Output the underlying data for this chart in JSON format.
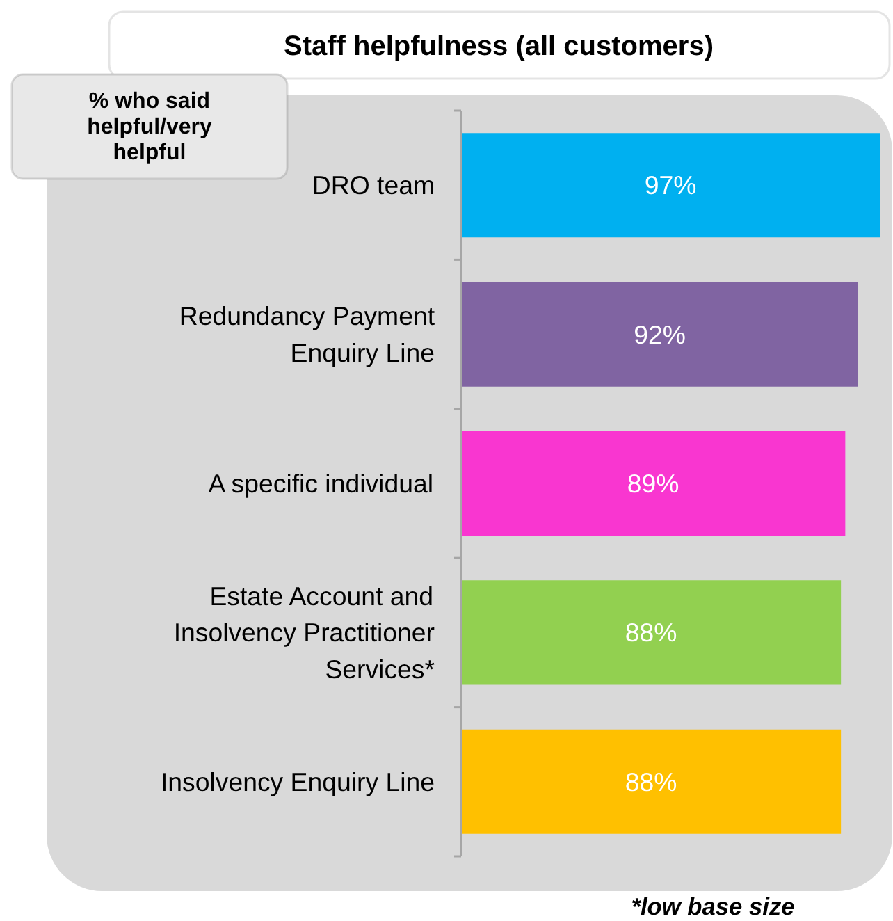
{
  "chart_data": {
    "type": "bar",
    "orientation": "horizontal",
    "title": "Staff helpfulness (all customers)",
    "categories": [
      "DRO team",
      "Redundancy Payment Enquiry Line",
      "A specific individual",
      "Estate Account and Insolvency Practitioner Services*",
      "Insolvency Enquiry Line"
    ],
    "values": [
      97,
      92,
      89,
      88,
      88
    ],
    "colors": [
      "#00b0f0",
      "#8064a2",
      "#f936d0",
      "#92d050",
      "#ffc000"
    ],
    "value_labels": [
      "97%",
      "92%",
      "89%",
      "88%",
      "88%"
    ],
    "annotations": [
      "% who said helpful/very helpful",
      "*low base size"
    ]
  }
}
